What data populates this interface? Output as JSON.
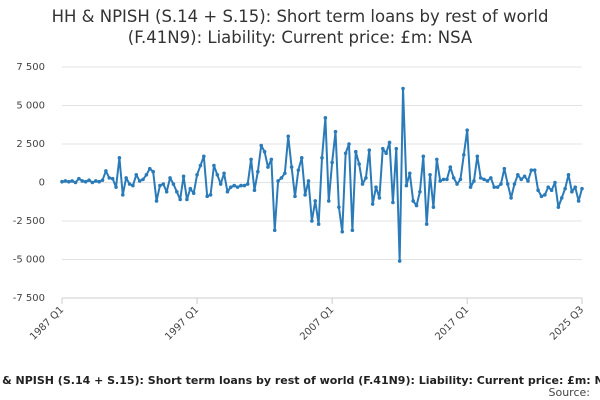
{
  "chart_data": {
    "type": "line",
    "title": "HH & NPISH (S.14 + S.15): Short term loans by rest of world (F.41N9): Liability: Current price: £m: NSA",
    "source": "Source:",
    "categories": [
      "1987 Q1",
      null,
      null,
      null,
      null,
      null,
      null,
      null,
      null,
      null,
      null,
      null,
      null,
      null,
      null,
      null,
      null,
      null,
      null,
      null,
      null,
      null,
      null,
      null,
      null,
      null,
      null,
      null,
      null,
      null,
      null,
      null,
      null,
      null,
      null,
      null,
      null,
      null,
      null,
      null,
      "1997 Q1",
      null,
      null,
      null,
      null,
      null,
      null,
      null,
      null,
      null,
      null,
      null,
      null,
      null,
      null,
      null,
      null,
      null,
      null,
      null,
      null,
      null,
      null,
      null,
      null,
      null,
      null,
      null,
      null,
      null,
      null,
      null,
      null,
      null,
      null,
      null,
      null,
      null,
      null,
      null,
      "2007 Q1",
      null,
      null,
      null,
      null,
      null,
      null,
      null,
      null,
      null,
      null,
      null,
      null,
      null,
      null,
      null,
      null,
      null,
      null,
      null,
      null,
      null,
      null,
      null,
      null,
      null,
      null,
      null,
      null,
      null,
      null,
      null,
      null,
      null,
      null,
      null,
      null,
      null,
      null,
      null,
      "2017 Q1",
      null,
      null,
      null,
      null,
      null,
      null,
      null,
      null,
      null,
      null,
      null,
      null,
      null,
      null,
      null,
      null,
      null,
      null,
      null,
      null,
      null,
      null,
      null,
      null,
      null,
      null,
      null,
      null,
      null,
      null,
      null,
      null,
      null,
      "2025 Q3"
    ],
    "series": [
      {
        "color": "#2b7bb9",
        "values": [
          50,
          100,
          50,
          100,
          0,
          250,
          100,
          50,
          150,
          0,
          100,
          50,
          150,
          750,
          300,
          250,
          -300,
          1600,
          -800,
          300,
          -100,
          -200,
          500,
          100,
          200,
          500,
          900,
          700,
          -1200,
          -200,
          -100,
          -600,
          300,
          -100,
          -600,
          -1100,
          400,
          -1100,
          -400,
          -700,
          500,
          1100,
          1700,
          -900,
          -800,
          1100,
          500,
          -100,
          600,
          -600,
          -300,
          -200,
          -300,
          -200,
          -200,
          -100,
          1500,
          -500,
          700,
          2400,
          2000,
          1000,
          1500,
          -3100,
          100,
          300,
          600,
          3000,
          1000,
          -900,
          800,
          1600,
          -800,
          100,
          -2500,
          -1200,
          -2700,
          1600,
          4200,
          -1200,
          1300,
          3300,
          -1600,
          -3200,
          1900,
          2500,
          -3100,
          2000,
          1200,
          -100,
          300,
          2100,
          -1400,
          -300,
          -1000,
          2200,
          1900,
          2600,
          -1300,
          2200,
          -5100,
          6100,
          -200,
          600,
          -1200,
          -1500,
          -600,
          1700,
          -2700,
          500,
          -1600,
          1500,
          100,
          200,
          200,
          1000,
          300,
          -100,
          200,
          1800,
          3400,
          -300,
          100,
          1700,
          300,
          200,
          100,
          300,
          -300,
          -300,
          -100,
          900,
          -100,
          -1000,
          -100,
          500,
          200,
          400,
          100,
          800,
          800,
          -500,
          -900,
          -800,
          -300,
          -500,
          0,
          -1600,
          -1000,
          -400,
          500,
          -600,
          -300,
          -1200,
          -400
        ]
      }
    ],
    "ylim": [
      -7500,
      7500
    ],
    "yticks": [
      {
        "value": -7500,
        "label": "-7 500"
      },
      {
        "value": -5000,
        "label": "-5 000"
      },
      {
        "value": -2500,
        "label": "-2 500"
      },
      0,
      {
        "value": 2500,
        "label": "2 500"
      },
      {
        "value": 5000,
        "label": "5 000"
      },
      {
        "value": 7500,
        "label": "7 500"
      }
    ],
    "grid": true
  }
}
